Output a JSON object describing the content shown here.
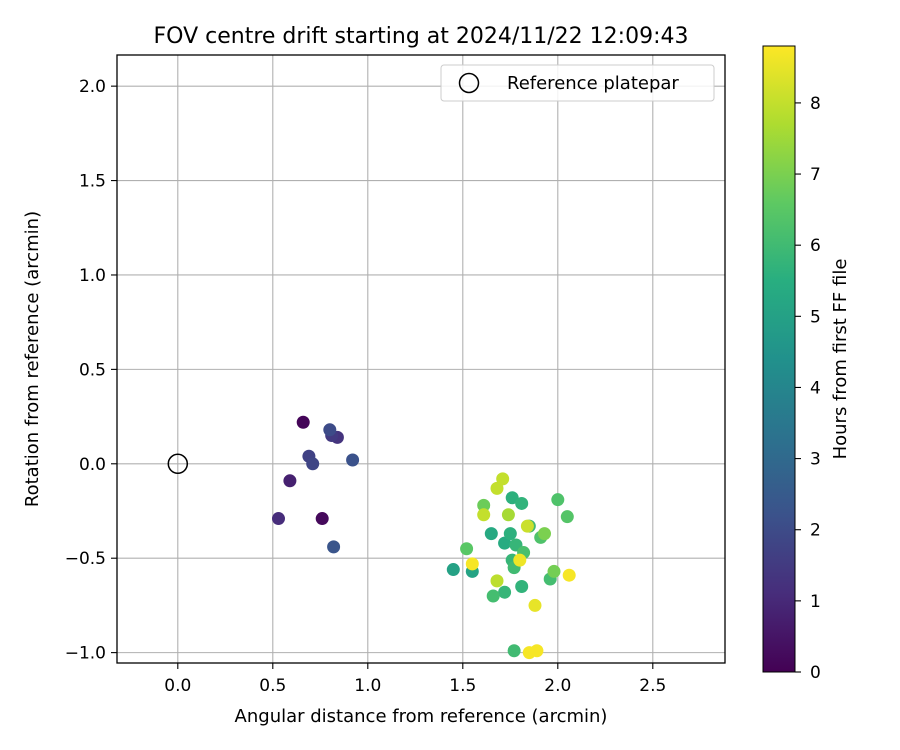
{
  "chart_data": {
    "type": "scatter",
    "title": "FOV centre drift starting at 2024/11/22 12:09:43",
    "xlabel": "Angular distance from reference (arcmin)",
    "ylabel": "Rotation from reference (arcmin)",
    "xlim": [
      -0.32,
      2.88
    ],
    "ylim": [
      -1.055,
      2.165
    ],
    "xticks": [
      0.0,
      0.5,
      1.0,
      1.5,
      2.0,
      2.5
    ],
    "xtick_labels": [
      "0.0",
      "0.5",
      "1.0",
      "1.5",
      "2.0",
      "2.5"
    ],
    "yticks": [
      -1.0,
      -0.5,
      0.0,
      0.5,
      1.0,
      1.5,
      2.0
    ],
    "ytick_labels": [
      "−1.0",
      "−0.5",
      "0.0",
      "0.5",
      "1.0",
      "1.5",
      "2.0"
    ],
    "grid": true,
    "legend": {
      "location": "upper right",
      "entries": [
        "Reference platepar"
      ]
    },
    "reference": {
      "x": 0.0,
      "y": 0.0,
      "label": "Reference platepar"
    },
    "colorbar": {
      "label": "Hours from first FF file",
      "colormap": "viridis",
      "range": [
        0,
        8.8
      ],
      "ticks": [
        0,
        1,
        2,
        3,
        4,
        5,
        6,
        7,
        8
      ],
      "tick_labels": [
        "0",
        "1",
        "2",
        "3",
        "4",
        "5",
        "6",
        "7",
        "8"
      ]
    },
    "points": [
      {
        "x": 0.66,
        "y": 0.22,
        "hours": 0.1
      },
      {
        "x": 0.76,
        "y": -0.29,
        "hours": 0.2
      },
      {
        "x": 0.59,
        "y": -0.09,
        "hours": 0.8
      },
      {
        "x": 0.53,
        "y": -0.29,
        "hours": 1.1
      },
      {
        "x": 0.84,
        "y": 0.14,
        "hours": 1.3
      },
      {
        "x": 0.81,
        "y": 0.15,
        "hours": 1.5
      },
      {
        "x": 0.69,
        "y": 0.04,
        "hours": 1.7
      },
      {
        "x": 0.71,
        "y": 0.0,
        "hours": 1.8
      },
      {
        "x": 0.8,
        "y": 0.18,
        "hours": 2.0
      },
      {
        "x": 0.92,
        "y": 0.02,
        "hours": 2.2
      },
      {
        "x": 0.82,
        "y": -0.44,
        "hours": 2.3
      },
      {
        "x": 1.45,
        "y": -0.56,
        "hours": 5.0
      },
      {
        "x": 1.55,
        "y": -0.57,
        "hours": 5.1
      },
      {
        "x": 1.65,
        "y": -0.37,
        "hours": 5.3
      },
      {
        "x": 1.72,
        "y": -0.42,
        "hours": 5.4
      },
      {
        "x": 1.75,
        "y": -0.37,
        "hours": 5.6
      },
      {
        "x": 1.76,
        "y": -0.18,
        "hours": 5.6
      },
      {
        "x": 1.81,
        "y": -0.21,
        "hours": 5.7
      },
      {
        "x": 1.78,
        "y": -0.43,
        "hours": 5.8
      },
      {
        "x": 1.76,
        "y": -0.51,
        "hours": 5.8
      },
      {
        "x": 1.77,
        "y": -0.55,
        "hours": 6.0
      },
      {
        "x": 1.81,
        "y": -0.65,
        "hours": 5.7
      },
      {
        "x": 1.72,
        "y": -0.68,
        "hours": 5.8
      },
      {
        "x": 1.66,
        "y": -0.7,
        "hours": 6.1
      },
      {
        "x": 1.77,
        "y": -0.99,
        "hours": 6.0
      },
      {
        "x": 1.85,
        "y": -0.33,
        "hours": 6.0
      },
      {
        "x": 1.82,
        "y": -0.47,
        "hours": 6.2
      },
      {
        "x": 1.91,
        "y": -0.39,
        "hours": 6.3
      },
      {
        "x": 1.96,
        "y": -0.61,
        "hours": 6.1
      },
      {
        "x": 2.0,
        "y": -0.19,
        "hours": 6.3
      },
      {
        "x": 2.05,
        "y": -0.28,
        "hours": 6.4
      },
      {
        "x": 1.52,
        "y": -0.45,
        "hours": 6.5
      },
      {
        "x": 1.61,
        "y": -0.22,
        "hours": 6.8
      },
      {
        "x": 1.98,
        "y": -0.57,
        "hours": 6.9
      },
      {
        "x": 1.93,
        "y": -0.37,
        "hours": 7.0
      },
      {
        "x": 1.74,
        "y": -0.27,
        "hours": 7.6
      },
      {
        "x": 1.61,
        "y": -0.27,
        "hours": 8.0
      },
      {
        "x": 1.68,
        "y": -0.13,
        "hours": 8.0
      },
      {
        "x": 1.71,
        "y": -0.08,
        "hours": 8.0
      },
      {
        "x": 1.68,
        "y": -0.62,
        "hours": 7.9
      },
      {
        "x": 1.84,
        "y": -0.33,
        "hours": 8.1
      },
      {
        "x": 1.88,
        "y": -0.75,
        "hours": 8.5
      },
      {
        "x": 1.8,
        "y": -0.51,
        "hours": 8.6
      },
      {
        "x": 1.55,
        "y": -0.53,
        "hours": 8.7
      },
      {
        "x": 2.06,
        "y": -0.59,
        "hours": 8.7
      },
      {
        "x": 1.85,
        "y": -1.0,
        "hours": 8.7
      },
      {
        "x": 1.89,
        "y": -0.99,
        "hours": 8.7
      }
    ]
  }
}
